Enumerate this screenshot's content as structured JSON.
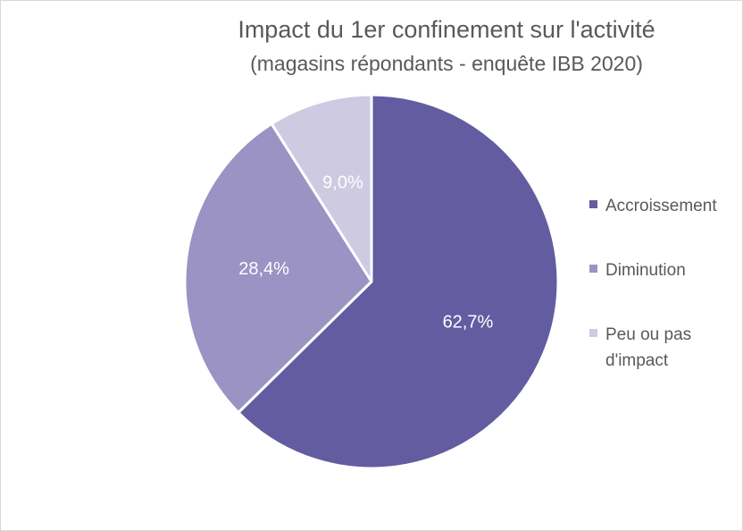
{
  "chart_data": {
    "type": "pie",
    "title": "Impact du 1er confinement sur l'activité",
    "subtitle": "(magasins répondants - enquête IBB 2020)",
    "categories": [
      "Accroissement",
      "Diminution",
      "Peu ou pas d'impact"
    ],
    "values": [
      62.7,
      28.4,
      9.0
    ],
    "data_labels": [
      "62,7%",
      "28,4%",
      "9,0%"
    ],
    "colors": [
      "#635ca1",
      "#9a93c4",
      "#cdcae2"
    ],
    "label_colors": [
      "#ffffff",
      "#ffffff",
      "#ffffff"
    ],
    "start_angle_deg": 0,
    "direction": "clockwise",
    "legend_position": "right"
  },
  "legend": {
    "items": [
      {
        "label": "Accroissement",
        "color": "#635ca1"
      },
      {
        "label": "Diminution",
        "color": "#9a93c4"
      },
      {
        "label": "Peu ou pas d'impact",
        "color": "#cdcae2"
      }
    ]
  }
}
